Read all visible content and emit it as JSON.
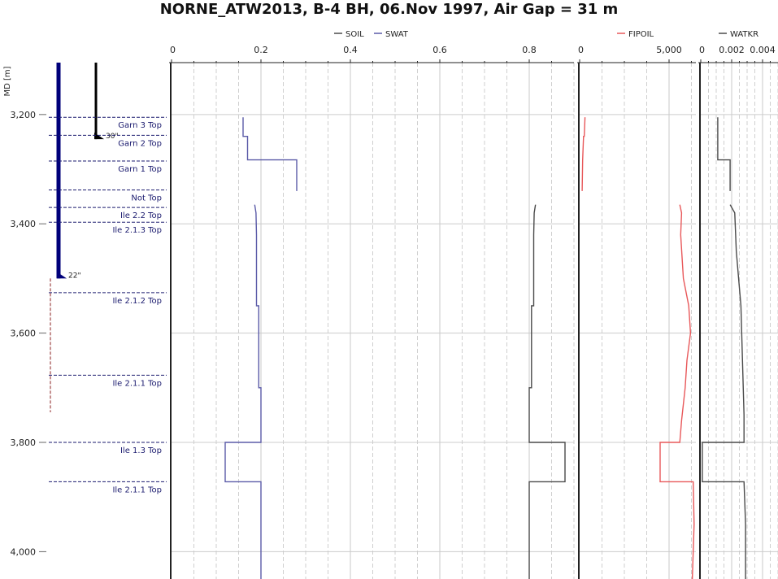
{
  "title": "NORNE_ATW2013, B-4 BH, 06.Nov 1997, Air Gap = 31 m",
  "chart_data": {
    "type": "line",
    "depth_axis": {
      "label": "MD [m]",
      "ticks": [
        "3,200",
        "3,400",
        "3,600",
        "3,800",
        "4,000"
      ],
      "tick_values": [
        3200,
        3400,
        3600,
        3800,
        4000
      ],
      "range": [
        3105,
        4050
      ],
      "inverted": true
    },
    "casing": [
      {
        "label": "30\"",
        "top": 3105,
        "shoe": 3245,
        "color": "#000000"
      },
      {
        "label": "22\"",
        "top": 3105,
        "shoe": 3500,
        "color": "#00007a"
      }
    ],
    "formation_tops": [
      {
        "name": "Garn 3 Top",
        "md": 3205
      },
      {
        "name": "Garn 2 Top",
        "md": 3238
      },
      {
        "name": "Garn 1 Top",
        "md": 3285
      },
      {
        "name": "Not Top",
        "md": 3338
      },
      {
        "name": "Ile 2.2 Top",
        "md": 3370
      },
      {
        "name": "Ile 2.1.3 Top",
        "md": 3397
      },
      {
        "name": "Ile 2.1.2 Top",
        "md": 3526
      },
      {
        "name": "Ile 2.1.1 Top",
        "md": 3677
      },
      {
        "name": "Ile 1.3 Top",
        "md": 3800
      },
      {
        "name": "Ile 2.1.1 Top",
        "md": 3872
      }
    ],
    "tracks": [
      {
        "legend": [
          "SOIL",
          "SWAT"
        ],
        "xlim": [
          0,
          0.9
        ],
        "ticks": [
          "0",
          "0.2",
          "0.4",
          "0.6",
          "0.8"
        ],
        "tick_values": [
          0,
          0.2,
          0.4,
          0.6,
          0.8
        ],
        "series": [
          {
            "name": "SWAT",
            "color": "#5b5ba8",
            "points": [
              [
                0.16,
                3205
              ],
              [
                0.16,
                3240
              ],
              [
                0.17,
                3240
              ],
              [
                0.17,
                3283
              ],
              [
                0.28,
                3283
              ],
              [
                0.28,
                3340
              ]
            ]
          },
          {
            "name": "SWAT",
            "color": "#5b5ba8",
            "points": [
              [
                0.186,
                3365
              ],
              [
                0.189,
                3380
              ],
              [
                0.19,
                3420
              ],
              [
                0.19,
                3550
              ],
              [
                0.195,
                3550
              ],
              [
                0.195,
                3700
              ],
              [
                0.2,
                3700
              ],
              [
                0.2,
                3800
              ],
              [
                0.12,
                3800
              ],
              [
                0.12,
                3872
              ],
              [
                0.2,
                3872
              ],
              [
                0.2,
                4050
              ]
            ]
          },
          {
            "name": "SOIL",
            "color": "#4a4a4a",
            "points": [
              [
                0.814,
                3365
              ],
              [
                0.811,
                3380
              ],
              [
                0.81,
                3420
              ],
              [
                0.81,
                3550
              ],
              [
                0.805,
                3550
              ],
              [
                0.805,
                3700
              ],
              [
                0.8,
                3700
              ],
              [
                0.8,
                3800
              ],
              [
                0.88,
                3800
              ],
              [
                0.88,
                3872
              ],
              [
                0.8,
                3872
              ],
              [
                0.8,
                4050
              ]
            ]
          }
        ]
      },
      {
        "legend": [
          "FIPOIL"
        ],
        "xlim": [
          0,
          6500
        ],
        "ticks": [
          "0",
          "5,000"
        ],
        "tick_values": [
          0,
          5000
        ],
        "series": [
          {
            "name": "FIPOIL",
            "color": "#e8585a",
            "points": [
              [
                300,
                3205
              ],
              [
                260,
                3240
              ],
              [
                220,
                3240
              ],
              [
                170,
                3283
              ],
              [
                140,
                3340
              ]
            ]
          },
          {
            "name": "FIPOIL",
            "color": "#e8585a",
            "points": [
              [
                5600,
                3365
              ],
              [
                5700,
                3380
              ],
              [
                5650,
                3420
              ],
              [
                5800,
                3500
              ],
              [
                6100,
                3550
              ],
              [
                6200,
                3600
              ],
              [
                6000,
                3650
              ],
              [
                5900,
                3700
              ],
              [
                5700,
                3760
              ],
              [
                5600,
                3800
              ],
              [
                4500,
                3800
              ],
              [
                4500,
                3872
              ],
              [
                6350,
                3872
              ],
              [
                6400,
                3950
              ],
              [
                6300,
                4050
              ]
            ]
          }
        ]
      },
      {
        "legend": [
          "WATKR"
        ],
        "xlim": [
          0,
          0.005
        ],
        "ticks": [
          "0",
          "0.002",
          "0.004"
        ],
        "tick_values": [
          0,
          0.002,
          0.004
        ],
        "series": [
          {
            "name": "WATKR",
            "color": "#4a4a4a",
            "points": [
              [
                0.0011,
                3205
              ],
              [
                0.0011,
                3283
              ],
              [
                0.0019,
                3283
              ],
              [
                0.0019,
                3340
              ]
            ]
          },
          {
            "name": "WATKR",
            "color": "#4a4a4a",
            "points": [
              [
                0.0019,
                3365
              ],
              [
                0.0022,
                3380
              ],
              [
                0.0023,
                3450
              ],
              [
                0.0026,
                3550
              ],
              [
                0.0027,
                3650
              ],
              [
                0.0028,
                3750
              ],
              [
                0.0028,
                3800
              ],
              [
                0.0001,
                3800
              ],
              [
                0.0001,
                3872
              ],
              [
                0.0028,
                3872
              ],
              [
                0.0029,
                3950
              ],
              [
                0.0029,
                4050
              ]
            ]
          }
        ]
      }
    ],
    "grid": true
  }
}
